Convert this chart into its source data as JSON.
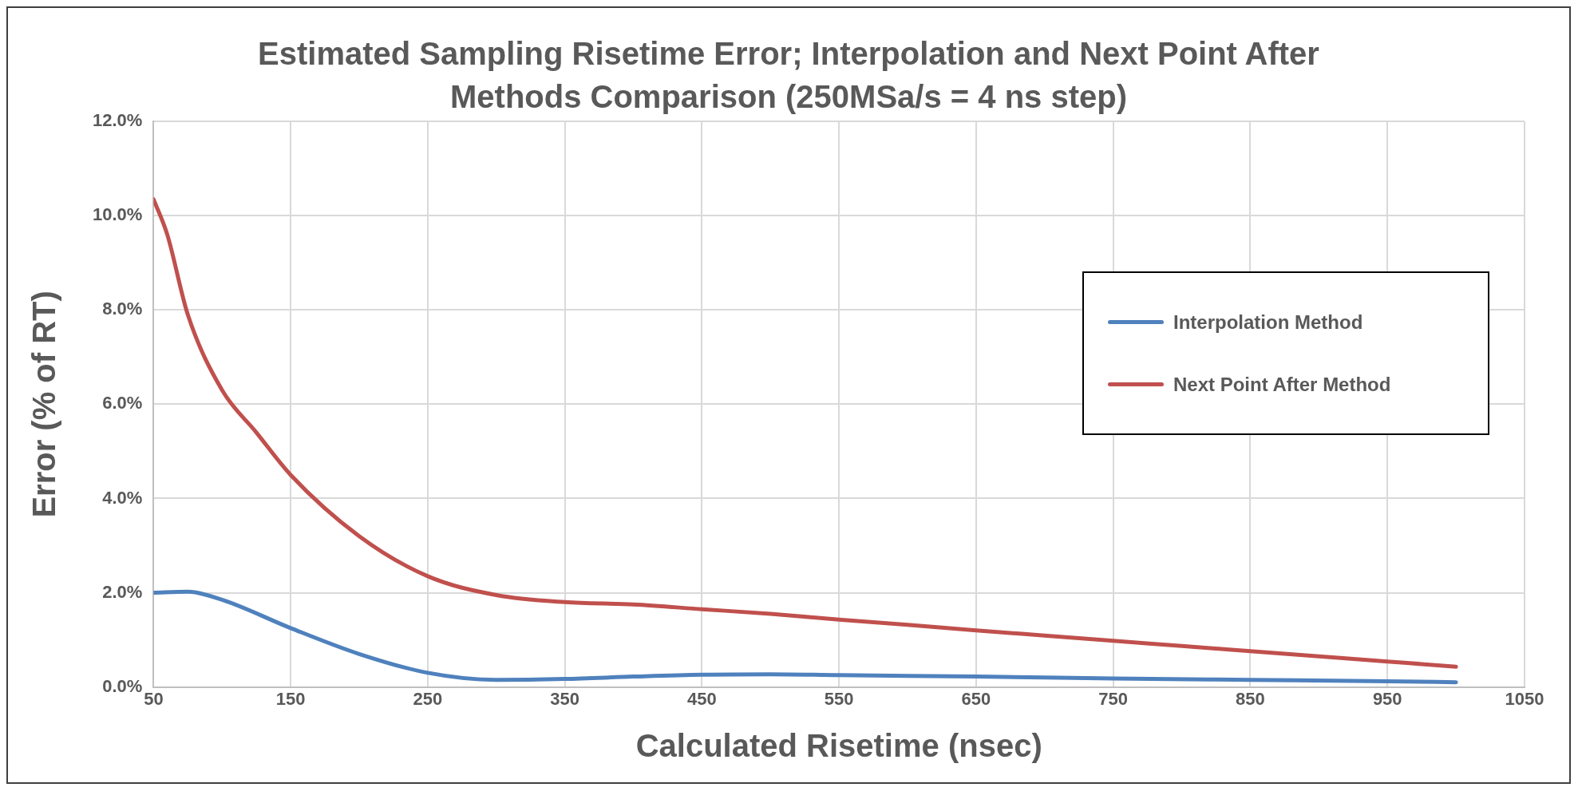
{
  "chart_data": {
    "type": "line",
    "title": "Estimated Sampling Risetime Error; Interpolation and Next Point After Methods Comparison  (250MSa/s = 4 ns step)",
    "xlabel": "Calculated Risetime (nsec)",
    "ylabel": "Error (% of RT)",
    "xlim": [
      50,
      1050
    ],
    "xticks": [
      50,
      150,
      250,
      350,
      450,
      550,
      650,
      750,
      850,
      950,
      1050
    ],
    "ylim": [
      0,
      12
    ],
    "yticks": [
      {
        "value": 0,
        "label": "0.0%"
      },
      {
        "value": 2,
        "label": "2.0%"
      },
      {
        "value": 4,
        "label": "4.0%"
      },
      {
        "value": 6,
        "label": "6.0%"
      },
      {
        "value": 8,
        "label": "8.0%"
      },
      {
        "value": 10,
        "label": "10.0%"
      },
      {
        "value": 12,
        "label": "12.0%"
      }
    ],
    "grid": true,
    "legend": "right",
    "marker": "none",
    "line_style": "solid",
    "series": [
      {
        "name": "Interpolation Method",
        "color": "#4f81bd",
        "x": [
          50,
          75,
          100,
          150,
          200,
          250,
          300,
          350,
          400,
          450,
          500,
          550,
          650,
          750,
          850,
          950,
          1000
        ],
        "values": [
          2.0,
          2.02,
          1.85,
          1.25,
          0.7,
          0.3,
          0.15,
          0.17,
          0.22,
          0.26,
          0.27,
          0.25,
          0.22,
          0.18,
          0.15,
          0.12,
          0.1
        ]
      },
      {
        "name": "Next Point After Method",
        "color": "#c0504d",
        "x": [
          50,
          60,
          75,
          100,
          125,
          150,
          200,
          250,
          300,
          350,
          400,
          450,
          500,
          550,
          600,
          650,
          700,
          750,
          800,
          850,
          900,
          950,
          1000
        ],
        "values": [
          10.35,
          9.6,
          7.9,
          6.3,
          5.4,
          4.5,
          3.2,
          2.35,
          1.95,
          1.8,
          1.75,
          1.65,
          1.55,
          1.43,
          1.32,
          1.2,
          1.09,
          0.98,
          0.87,
          0.76,
          0.65,
          0.54,
          0.43
        ]
      }
    ]
  }
}
